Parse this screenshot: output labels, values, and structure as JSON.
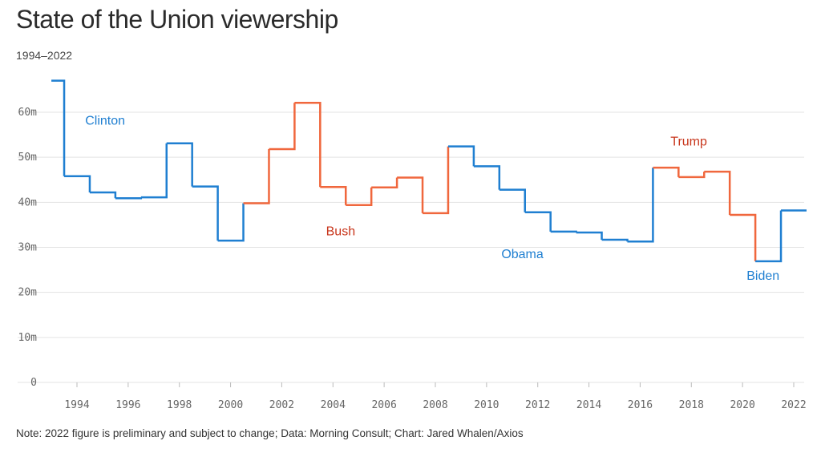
{
  "chart_data": {
    "type": "line",
    "step": true,
    "title": "State of the Union viewership",
    "subtitle": "1994–2022",
    "note": "Note: 2022 figure is preliminary and subject to change; Data: Morning Consult; Chart: Jared Whalen/Axios",
    "xlabel": "",
    "ylabel": "",
    "xlim": [
      1993,
      2022.4
    ],
    "ylim": [
      0,
      70
    ],
    "x_ticks": [
      1994,
      1996,
      1998,
      2000,
      2002,
      2004,
      2006,
      2008,
      2010,
      2012,
      2014,
      2016,
      2018,
      2020,
      2022
    ],
    "x_tick_labels": [
      "1994",
      "1996",
      "1998",
      "2000",
      "2002",
      "2004",
      "2006",
      "2008",
      "2010",
      "2012",
      "2014",
      "2016",
      "2018",
      "2020",
      "2022"
    ],
    "y_ticks": [
      0,
      10,
      20,
      30,
      40,
      50,
      60
    ],
    "y_tick_labels": [
      "0",
      "10m",
      "20m",
      "30m",
      "40m",
      "50m",
      "60m"
    ],
    "grid": "horizontal",
    "colors": {
      "democrat": "#1f7fd1",
      "republican": "#f0673d",
      "republican_label": "#c8361c"
    },
    "series": [
      {
        "name": "Clinton",
        "party": "democrat",
        "label_color": "#1f7fd1",
        "points": [
          [
            1993,
            67
          ],
          [
            1994,
            45.8
          ],
          [
            1995,
            42.2
          ],
          [
            1996,
            40.9
          ],
          [
            1997,
            41.1
          ],
          [
            1998,
            53.1
          ],
          [
            1999,
            43.5
          ],
          [
            2000,
            31.5
          ]
        ]
      },
      {
        "name": "Bush",
        "party": "republican",
        "label_color": "#c8361c",
        "points": [
          [
            2001,
            39.8
          ],
          [
            2002,
            51.8
          ],
          [
            2003,
            62.1
          ],
          [
            2004,
            43.4
          ],
          [
            2005,
            39.4
          ],
          [
            2006,
            43.3
          ],
          [
            2007,
            45.5
          ],
          [
            2008,
            37.6
          ]
        ]
      },
      {
        "name": "Obama",
        "party": "democrat",
        "label_color": "#1f7fd1",
        "points": [
          [
            2009,
            52.4
          ],
          [
            2010,
            48
          ],
          [
            2011,
            42.8
          ],
          [
            2012,
            37.8
          ],
          [
            2013,
            33.5
          ],
          [
            2014,
            33.3
          ],
          [
            2015,
            31.7
          ],
          [
            2016,
            31.3
          ]
        ]
      },
      {
        "name": "Trump",
        "party": "republican",
        "label_color": "#c8361c",
        "points": [
          [
            2017,
            47.7
          ],
          [
            2018,
            45.6
          ],
          [
            2019,
            46.8
          ],
          [
            2020,
            37.2
          ]
        ]
      },
      {
        "name": "Biden",
        "party": "democrat",
        "label_color": "#1f7fd1",
        "points": [
          [
            2021,
            26.9
          ],
          [
            2022,
            38.2
          ]
        ]
      }
    ]
  }
}
